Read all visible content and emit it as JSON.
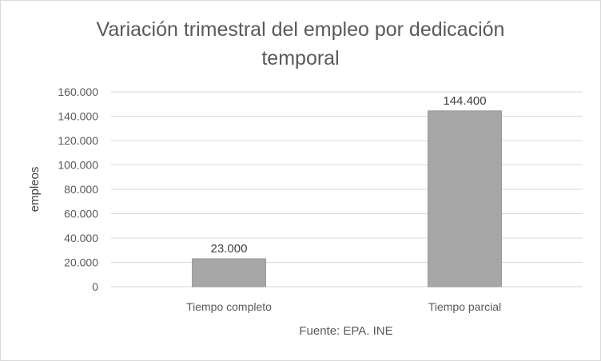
{
  "chart_data": {
    "type": "bar",
    "title_lines": [
      "Variación trimestral del empleo por dedicación",
      "temporal"
    ],
    "categories": [
      "Tiempo completo",
      "Tiempo parcial"
    ],
    "values": [
      23000,
      144400
    ],
    "data_labels": [
      "23.000",
      "144.400"
    ],
    "ylabel": "empleos",
    "xlabel": "",
    "ylim": [
      0,
      160000
    ],
    "y_ticks": [
      0,
      20000,
      40000,
      60000,
      80000,
      100000,
      120000,
      140000,
      160000
    ],
    "y_tick_labels": [
      "0",
      "20.000",
      "40.000",
      "60.000",
      "80.000",
      "100.000",
      "120.000",
      "140.000",
      "160.000"
    ],
    "grid": true,
    "legend": "none",
    "bar_color": "#a6a6a6",
    "source": "Fuente: EPA. INE"
  }
}
